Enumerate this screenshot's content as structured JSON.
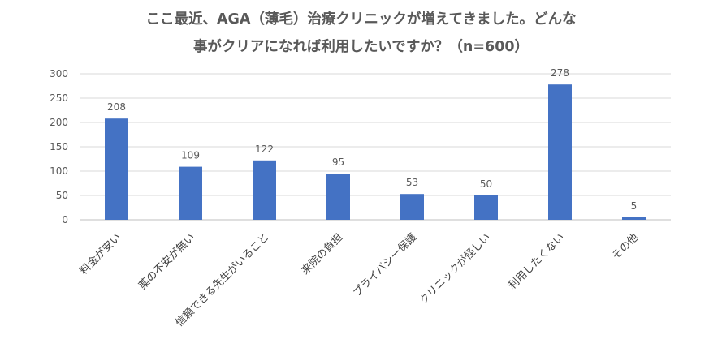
{
  "title_lines": [
    "ここ最近、AGA（薄毛）治療クリニックが増えてきました。どんな",
    "事がクリアになれば利用したいですか？（n=600）"
  ],
  "colors": {
    "bar": "#4472c4",
    "grid": "#d9d9d9",
    "text": "#595959"
  },
  "chart_data": {
    "type": "bar",
    "title": "ここ最近、AGA（薄毛）治療クリニックが増えてきました。どんな事がクリアになれば利用したいですか？（n=600）",
    "categories": [
      "料金が安い",
      "薬の不安が無い",
      "信頼できる先生がいること",
      "来院の負担",
      "プライバシー保護",
      "クリニックが怪しい",
      "利用したくない",
      "その他"
    ],
    "values": [
      208,
      109,
      122,
      95,
      53,
      50,
      278,
      5
    ],
    "ylim": [
      0,
      300
    ],
    "yticks": [
      0,
      50,
      100,
      150,
      200,
      250,
      300
    ],
    "xlabel": "",
    "ylabel": "",
    "grid": true,
    "data_labels": true
  }
}
